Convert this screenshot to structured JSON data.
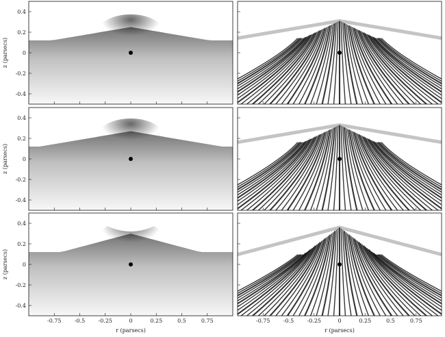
{
  "figure": {
    "ylabel": "z (parsecs)",
    "xlabel": "r (parsecs)",
    "x_ticks": [
      "-0.75",
      "-0.5",
      "-0.25",
      "0",
      "0.25",
      "0.5",
      "0.75"
    ],
    "y_ticks": [
      "0.4",
      "0.2",
      "0",
      "-0.2",
      "-0.4"
    ],
    "x_range": [
      -1,
      1
    ],
    "y_range": [
      -0.5,
      0.5
    ],
    "grid": false,
    "rows": 3,
    "columns": 2,
    "left_column": "smooth density map",
    "right_column": "streamline map",
    "colors": {
      "ink": "#111111",
      "frame": "#111111",
      "background": "#ffffff"
    },
    "point_source": {
      "r": 0,
      "z": 0
    },
    "front_height": [
      0.25,
      0.27,
      0.3
    ],
    "front_height_right": [
      0.31,
      0.33,
      0.36
    ]
  }
}
